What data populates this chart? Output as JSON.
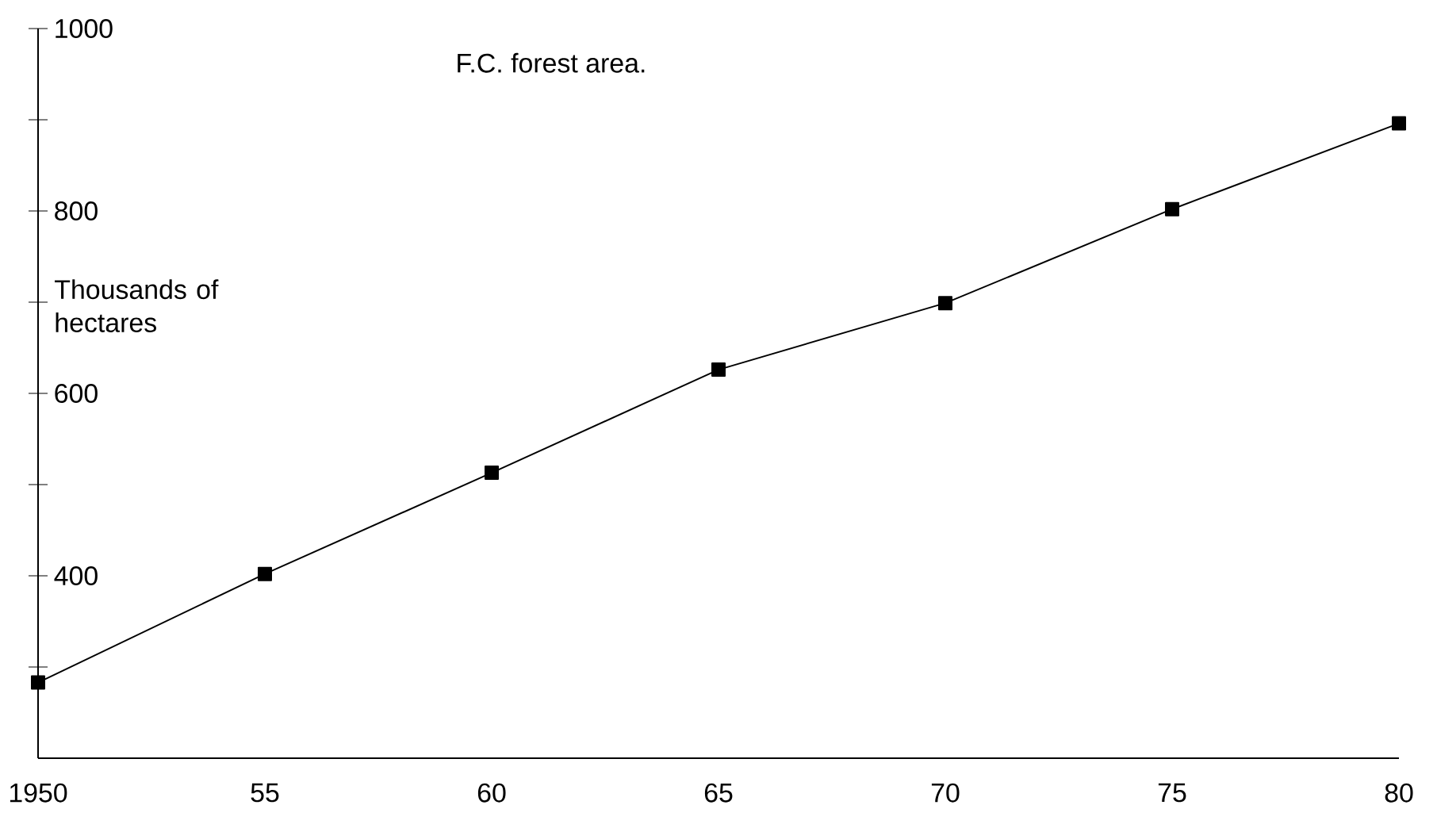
{
  "chart_data": {
    "type": "line",
    "title": "F.C. forest area.",
    "ylabel": "Thousands of hectares",
    "x": [
      1950,
      1955,
      1960,
      1965,
      1970,
      1975,
      1980
    ],
    "values": [
      283,
      402,
      513,
      626,
      699,
      802,
      896
    ],
    "color": "#000000",
    "marker": "square",
    "xlim": [
      1950,
      1980
    ],
    "ylim": [
      200,
      1000
    ],
    "xticks": [
      1950,
      {
        "value": 1955,
        "label": "55"
      },
      {
        "value": 1960,
        "label": "60"
      },
      {
        "value": 1965,
        "label": "65"
      },
      {
        "value": 1970,
        "label": "70"
      },
      {
        "value": 1975,
        "label": "75"
      },
      {
        "value": 1980,
        "label": "80"
      }
    ],
    "yticks": [
      {
        "value": 300,
        "label": null
      },
      400,
      {
        "value": 500,
        "label": null
      },
      600,
      {
        "value": 700,
        "label": null
      },
      800,
      {
        "value": 900,
        "label": null
      },
      1000
    ]
  }
}
